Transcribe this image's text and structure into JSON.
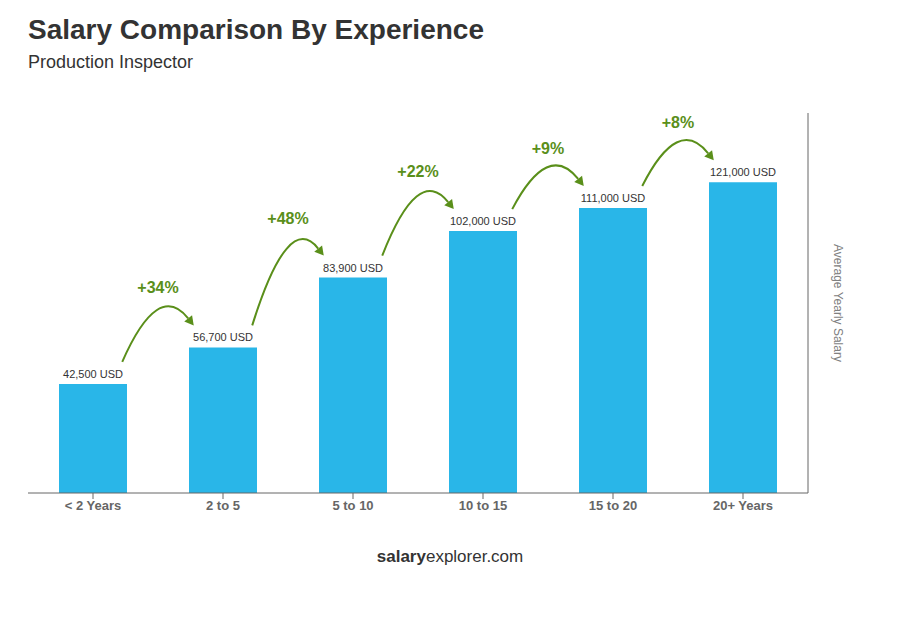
{
  "chart_data": {
    "type": "bar",
    "title": "Salary Comparison By Experience",
    "subtitle": "Production Inspector",
    "y_label": "Average Yearly Salary",
    "categories": [
      "< 2 Years",
      "2 to 5",
      "5 to 10",
      "10 to 15",
      "15 to 20",
      "20+ Years"
    ],
    "values": [
      42500,
      56700,
      83900,
      102000,
      111000,
      121000
    ],
    "value_labels": [
      "42,500 USD",
      "56,700 USD",
      "83,900 USD",
      "102,000 USD",
      "111,000 USD",
      "121,000 USD"
    ],
    "data_labels": true,
    "annotations": [
      "+34%",
      "+48%",
      "+22%",
      "+9%",
      "+8%"
    ],
    "footer": [
      "salary",
      "explorer.com"
    ],
    "color": "#29b6e8",
    "ylim": [
      0,
      148000
    ],
    "tick_labels": "x"
  }
}
